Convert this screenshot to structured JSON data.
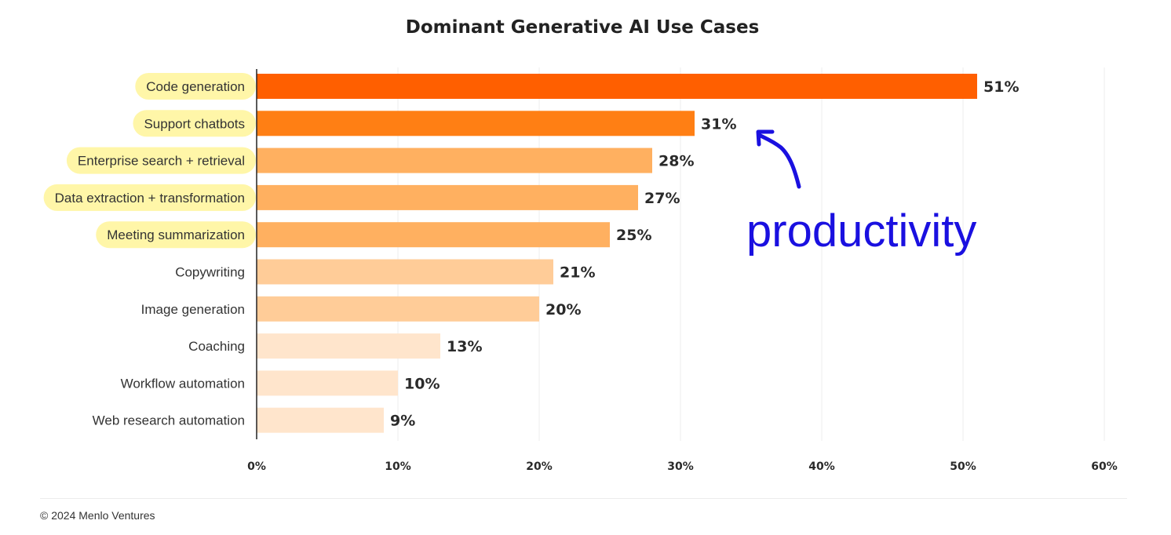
{
  "chart_data": {
    "type": "bar",
    "orientation": "horizontal",
    "title": "Dominant Generative AI Use Cases",
    "categories": [
      "Code generation",
      "Support chatbots",
      "Enterprise search + retrieval",
      "Data extraction + transformation",
      "Meeting summarization",
      "Copywriting",
      "Image generation",
      "Coaching",
      "Workflow automation",
      "Web research automation"
    ],
    "values": [
      51,
      31,
      28,
      27,
      25,
      21,
      20,
      13,
      10,
      9
    ],
    "value_labels": [
      "51%",
      "31%",
      "28%",
      "27%",
      "25%",
      "21%",
      "20%",
      "13%",
      "10%",
      "9%"
    ],
    "highlighted": [
      true,
      true,
      true,
      true,
      true,
      false,
      false,
      false,
      false,
      false
    ],
    "xlim": [
      0,
      60
    ],
    "x_ticks": [
      0,
      10,
      20,
      30,
      40,
      50,
      60
    ],
    "x_tick_labels": [
      "0%",
      "10%",
      "20%",
      "30%",
      "40%",
      "50%",
      "60%"
    ],
    "grid": "vertical",
    "xlabel": "",
    "ylabel": "",
    "annotation": {
      "text": "productivity",
      "color": "#1a10e0"
    },
    "bar_colors": [
      "#ff5f00",
      "#ff7f14",
      "#ffb060",
      "#ffb060",
      "#ffb060",
      "#ffcc98",
      "#ffcc98",
      "#ffe5cc",
      "#ffe5cc",
      "#ffe5cc"
    ],
    "highlight_color": "#fff6a8"
  },
  "footer": {
    "copyright": "© 2024 Menlo Ventures"
  }
}
